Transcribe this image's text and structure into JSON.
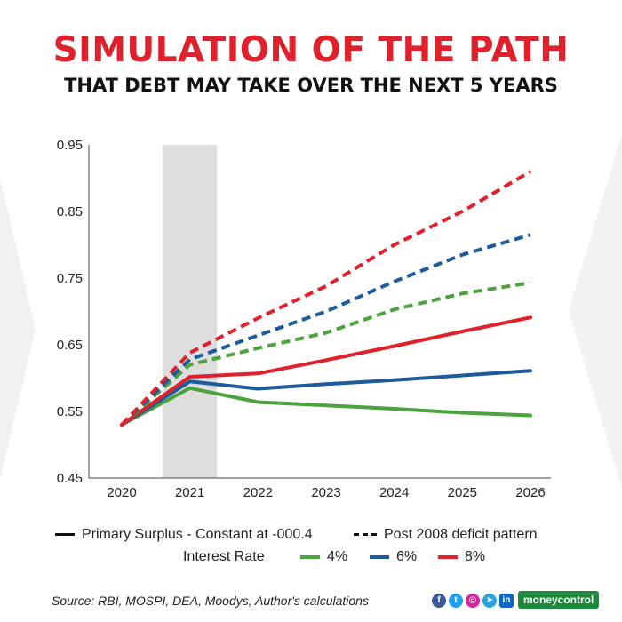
{
  "header": {
    "title": "SIMULATION OF THE PATH",
    "subtitle": "THAT DEBT MAY TAKE OVER THE NEXT 5 YEARS"
  },
  "legend": {
    "solid_label": "Primary Surplus - Constant at -000.4",
    "dashed_label": "Post 2008 deficit pattern",
    "interest_label": "Interest Rate",
    "rates": [
      {
        "label": "4%",
        "color": "#4aa33c"
      },
      {
        "label": "6%",
        "color": "#1c5c9e"
      },
      {
        "label": "8%",
        "color": "#e0202a"
      }
    ]
  },
  "footer": {
    "source": "Source: RBI, MOSPI, DEA, Moodys, Author's calculations",
    "brand": "moneycontrol",
    "social_icons": [
      "facebook-icon",
      "twitter-icon",
      "instagram-icon",
      "telegram-icon",
      "linkedin-icon"
    ]
  },
  "chart_data": {
    "type": "line",
    "x": [
      2020,
      2021,
      2022,
      2023,
      2024,
      2025,
      2026
    ],
    "xlim": [
      2020,
      2026
    ],
    "ylim": [
      0.45,
      0.95
    ],
    "yticks": [
      "0.45",
      "0.55",
      "0.65",
      "0.75",
      "0.85",
      "0.95"
    ],
    "xticks": [
      "2020",
      "2021",
      "2022",
      "2023",
      "2024",
      "2025",
      "2026"
    ],
    "shaded_region": [
      2020.6,
      2021.4
    ],
    "grid": false,
    "legend_position": "bottom",
    "series": [
      {
        "rate": "4%",
        "style": "solid",
        "color": "#4aa33c",
        "values": [
          0.53,
          0.585,
          0.564,
          0.559,
          0.554,
          0.548,
          0.544
        ]
      },
      {
        "rate": "6%",
        "style": "solid",
        "color": "#1c5c9e",
        "values": [
          0.53,
          0.595,
          0.584,
          0.591,
          0.597,
          0.604,
          0.611
        ]
      },
      {
        "rate": "8%",
        "style": "solid",
        "color": "#e0202a",
        "values": [
          0.53,
          0.602,
          0.607,
          0.627,
          0.648,
          0.67,
          0.691
        ]
      },
      {
        "rate": "4%",
        "style": "dashed",
        "color": "#4aa33c",
        "values": [
          0.53,
          0.62,
          0.645,
          0.668,
          0.703,
          0.727,
          0.743
        ]
      },
      {
        "rate": "6%",
        "style": "dashed",
        "color": "#1c5c9e",
        "values": [
          0.53,
          0.628,
          0.664,
          0.7,
          0.745,
          0.785,
          0.815
        ]
      },
      {
        "rate": "8%",
        "style": "dashed",
        "color": "#e0202a",
        "values": [
          0.53,
          0.638,
          0.69,
          0.738,
          0.8,
          0.85,
          0.91
        ]
      }
    ]
  }
}
